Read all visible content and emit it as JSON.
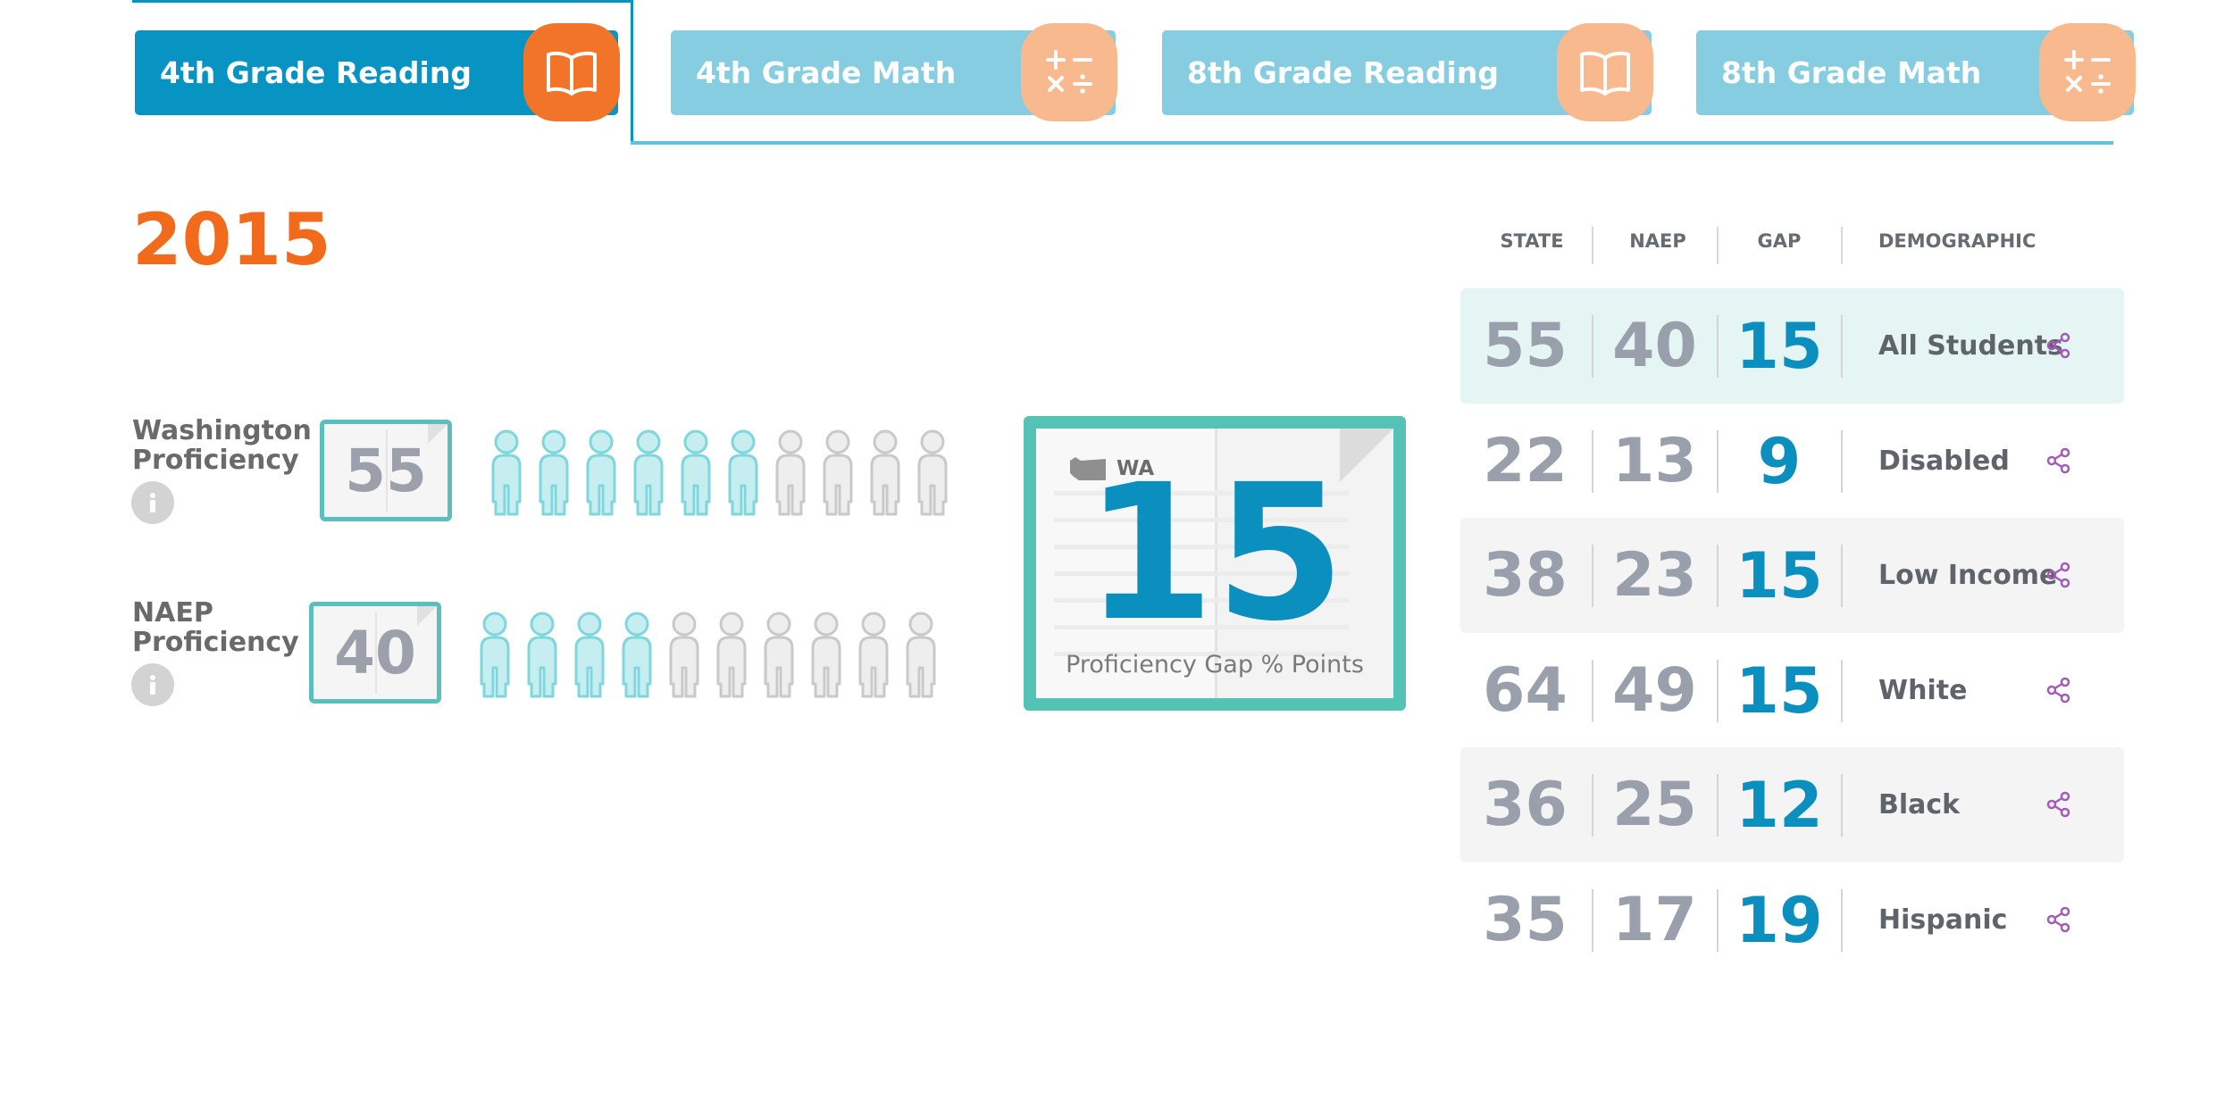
{
  "tabs": [
    {
      "label": "4th Grade Reading",
      "icon": "open-book-icon",
      "active": true
    },
    {
      "label": "4th Grade Math",
      "icon": "math-operators-icon",
      "active": false
    },
    {
      "label": "8th Grade Reading",
      "icon": "open-book-icon",
      "active": false
    },
    {
      "label": "8th Grade Math",
      "icon": "math-operators-icon",
      "active": false
    }
  ],
  "year": "2015",
  "state_proficiency": {
    "label_line1": "Washington",
    "label_line2": "Proficiency",
    "value": "55",
    "filled_figures": 6,
    "total_figures": 10
  },
  "naep_proficiency": {
    "label_line1": "NAEP",
    "label_line2": "Proficiency",
    "value": "40",
    "filled_figures": 4,
    "total_figures": 10
  },
  "gap_card": {
    "state_abbr": "WA",
    "value": "15",
    "caption": "Proficiency Gap % Points"
  },
  "table": {
    "headers": {
      "state": "STATE",
      "naep": "NAEP",
      "gap": "GAP",
      "demographic": "DEMOGRAPHIC"
    },
    "rows": [
      {
        "state": "55",
        "naep": "40",
        "gap": "15",
        "demographic": "All Students"
      },
      {
        "state": "22",
        "naep": "13",
        "gap": "9",
        "demographic": "Disabled"
      },
      {
        "state": "38",
        "naep": "23",
        "gap": "15",
        "demographic": "Low Income"
      },
      {
        "state": "64",
        "naep": "49",
        "gap": "15",
        "demographic": "White"
      },
      {
        "state": "36",
        "naep": "25",
        "gap": "12",
        "demographic": "Black"
      },
      {
        "state": "35",
        "naep": "17",
        "gap": "19",
        "demographic": "Hispanic"
      }
    ]
  },
  "colors": {
    "accent_blue": "#0894c2",
    "accent_orange": "#f26a1b",
    "teal": "#5cbfbb",
    "figure_filled": "#c6eef0",
    "figure_empty": "#eeeeee",
    "share_icon": "#a45bb7"
  }
}
